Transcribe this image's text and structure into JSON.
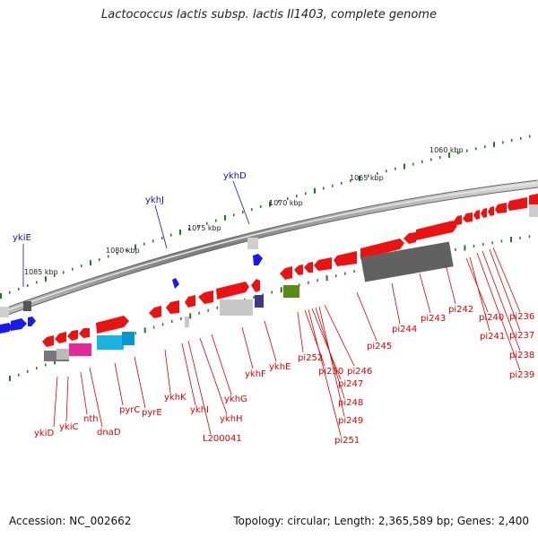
{
  "title": "Lactococcus lactis subsp. lactis Il1403, complete genome",
  "footer": {
    "accession": "Accession: NC_002662",
    "topology": "Topology: circular; Length: 2,365,589 bp; Genes: 2,400"
  },
  "colors": {
    "forward": "#1a1aee",
    "reverse": "#ee1111",
    "backbone": "#8a8a8a",
    "tick": "#1f7a1f"
  },
  "scale_labels": [
    "1085 kbp",
    "1080 kbp",
    "1075 kbp",
    "1070 kbp",
    "1065 kbp",
    "1060 kbp"
  ],
  "forward_genes": [
    "ykiE",
    "ykhJ",
    "ykhD"
  ],
  "reverse_genes": [
    "ykiD",
    "ykiC",
    "nth",
    "dnaD",
    "pyrC",
    "pyrE",
    "ykhK",
    "ykhI",
    "L200041",
    "ykhH",
    "ykhG",
    "ykhF",
    "ykhE",
    "pi252",
    "pi250",
    "pi246",
    "pi247",
    "pi248",
    "pi249",
    "pi251",
    "pi245",
    "pi244",
    "pi243",
    "pi242",
    "pi240",
    "pi241",
    "pi236",
    "pi237",
    "pi238",
    "pi239"
  ]
}
